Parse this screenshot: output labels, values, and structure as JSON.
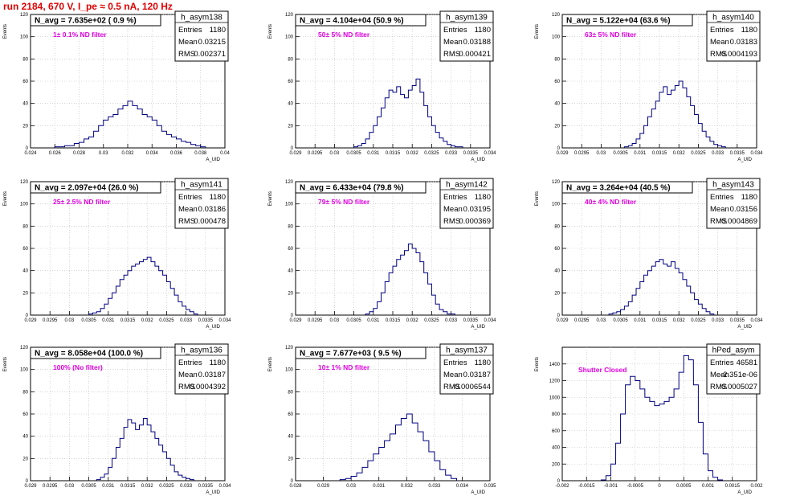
{
  "page_title": "run 2184,   670 V, I_pe ≈ 0.5 nA, 120 Hz",
  "ylabel": "Events",
  "xlabel": "A_UID",
  "stat_labels": {
    "entries": "Entries",
    "mean": "Mean",
    "rms": "RMS"
  },
  "colors": {
    "title": "#e00000",
    "annotation": "#e000e0",
    "hist": "#000080",
    "grid": "#bbbbbb"
  },
  "chart_data": [
    {
      "type": "bar",
      "id": "asym138",
      "name": "h_asym138",
      "navg": "N_avg = 7.635e+02 ( 0.9 %)",
      "note": "1± 0.1% ND filter",
      "stats": {
        "entries": "1180",
        "mean": "0.03215",
        "rms": "0.002371"
      },
      "xlim": [
        0.024,
        0.04
      ],
      "ylim": [
        0,
        120
      ],
      "xticks": [
        "0.024",
        "0.026",
        "0.028",
        "0.03",
        "0.032",
        "0.034",
        "0.036",
        "0.038",
        "0.04"
      ],
      "yticks": [
        "0",
        "20",
        "40",
        "60",
        "80",
        "100",
        "120"
      ],
      "grid": true,
      "x": [
        0.026,
        0.0264,
        0.0268,
        0.0272,
        0.0276,
        0.028,
        0.0284,
        0.0288,
        0.0292,
        0.0296,
        0.03,
        0.0304,
        0.0308,
        0.0312,
        0.0316,
        0.032,
        0.0324,
        0.0328,
        0.0332,
        0.0336,
        0.034,
        0.0344,
        0.0348,
        0.0352,
        0.0356,
        0.036,
        0.0364,
        0.0368,
        0.0372,
        0.0376,
        0.038
      ],
      "values": [
        1,
        1,
        2,
        2,
        4,
        5,
        8,
        10,
        15,
        20,
        25,
        28,
        30,
        35,
        38,
        42,
        38,
        35,
        30,
        28,
        25,
        20,
        15,
        12,
        10,
        8,
        6,
        5,
        3,
        2,
        1
      ]
    },
    {
      "type": "bar",
      "id": "asym139",
      "name": "h_asym139",
      "navg": "N_avg = 4.104e+04 (50.9 %)",
      "note": "50± 5% ND filter",
      "stats": {
        "entries": "1180",
        "mean": "0.03188",
        "rms": "0.000421"
      },
      "xlim": [
        0.029,
        0.034
      ],
      "ylim": [
        0,
        120
      ],
      "xticks": [
        "0.029",
        "0.0295",
        "0.03",
        "0.0305",
        "0.031",
        "0.0315",
        "0.032",
        "0.0325",
        "0.033",
        "0.0335",
        "0.034"
      ],
      "yticks": [
        "0",
        "20",
        "40",
        "60",
        "80",
        "100",
        "120"
      ],
      "grid": true,
      "x": [
        0.0305,
        0.0306,
        0.0307,
        0.0308,
        0.0309,
        0.031,
        0.0311,
        0.0312,
        0.0313,
        0.0314,
        0.0315,
        0.0316,
        0.0317,
        0.0318,
        0.0319,
        0.032,
        0.0321,
        0.0322,
        0.0323,
        0.0324,
        0.0325,
        0.0326,
        0.0327,
        0.0328,
        0.0329,
        0.033,
        0.0331,
        0.0332
      ],
      "values": [
        1,
        2,
        4,
        8,
        14,
        20,
        28,
        36,
        45,
        52,
        50,
        55,
        48,
        45,
        52,
        56,
        62,
        50,
        38,
        28,
        20,
        14,
        9,
        6,
        3,
        2,
        1,
        1
      ]
    },
    {
      "type": "bar",
      "id": "asym140",
      "name": "h_asym140",
      "navg": "N_avg = 5.122e+04 (63.6 %)",
      "note": "63± 5% ND filter",
      "stats": {
        "entries": "1180",
        "mean": "0.03183",
        "rms": "0.0004193"
      },
      "xlim": [
        0.029,
        0.034
      ],
      "ylim": [
        0,
        120
      ],
      "xticks": [
        "0.029",
        "0.0295",
        "0.03",
        "0.0305",
        "0.031",
        "0.0315",
        "0.032",
        "0.0325",
        "0.033",
        "0.0335",
        "0.034"
      ],
      "yticks": [
        "0",
        "20",
        "40",
        "60",
        "80",
        "100",
        "120"
      ],
      "grid": true,
      "x": [
        0.0306,
        0.0307,
        0.0308,
        0.0309,
        0.031,
        0.0311,
        0.0312,
        0.0313,
        0.0314,
        0.0315,
        0.0316,
        0.0317,
        0.0318,
        0.0319,
        0.032,
        0.0321,
        0.0322,
        0.0323,
        0.0324,
        0.0325,
        0.0326,
        0.0327,
        0.0328,
        0.0329,
        0.033,
        0.0331
      ],
      "values": [
        1,
        2,
        4,
        8,
        13,
        20,
        28,
        35,
        42,
        50,
        55,
        48,
        52,
        56,
        60,
        54,
        46,
        38,
        30,
        22,
        15,
        10,
        6,
        3,
        2,
        1
      ]
    },
    {
      "type": "bar",
      "id": "asym141",
      "name": "h_asym141",
      "navg": "N_avg = 2.097e+04 (26.0 %)",
      "note": "25± 2.5% ND filter",
      "stats": {
        "entries": "1180",
        "mean": "0.03186",
        "rms": "0.000478"
      },
      "xlim": [
        0.029,
        0.034
      ],
      "ylim": [
        0,
        120
      ],
      "xticks": [
        "0.029",
        "0.0295",
        "0.03",
        "0.0305",
        "0.031",
        "0.0315",
        "0.032",
        "0.0325",
        "0.033",
        "0.0335",
        "0.034"
      ],
      "yticks": [
        "0",
        "20",
        "40",
        "60",
        "80",
        "100",
        "120"
      ],
      "grid": true,
      "x": [
        0.0305,
        0.0306,
        0.0307,
        0.0308,
        0.0309,
        0.031,
        0.0311,
        0.0312,
        0.0313,
        0.0314,
        0.0315,
        0.0316,
        0.0317,
        0.0318,
        0.0319,
        0.032,
        0.0321,
        0.0322,
        0.0323,
        0.0324,
        0.0325,
        0.0326,
        0.0327,
        0.0328,
        0.0329,
        0.033,
        0.0331,
        0.0332
      ],
      "values": [
        1,
        2,
        3,
        6,
        10,
        15,
        20,
        26,
        32,
        36,
        40,
        44,
        46,
        48,
        50,
        52,
        48,
        44,
        40,
        36,
        30,
        24,
        18,
        12,
        8,
        5,
        3,
        1
      ]
    },
    {
      "type": "bar",
      "id": "asym142",
      "name": "h_asym142",
      "navg": "N_avg = 6.433e+04 (79.8 %)",
      "note": "79± 5% ND filter",
      "stats": {
        "entries": "1180",
        "mean": "0.03195",
        "rms": "0.000369"
      },
      "xlim": [
        0.029,
        0.034
      ],
      "ylim": [
        0,
        120
      ],
      "xticks": [
        "0.029",
        "0.0295",
        "0.03",
        "0.0305",
        "0.031",
        "0.0315",
        "0.032",
        "0.0325",
        "0.033",
        "0.0335",
        "0.034"
      ],
      "yticks": [
        "0",
        "20",
        "40",
        "60",
        "80",
        "100",
        "120"
      ],
      "grid": true,
      "x": [
        0.0308,
        0.0309,
        0.031,
        0.0311,
        0.0312,
        0.0313,
        0.0314,
        0.0315,
        0.0316,
        0.0317,
        0.0318,
        0.0319,
        0.032,
        0.0321,
        0.0322,
        0.0323,
        0.0324,
        0.0325,
        0.0326,
        0.0327,
        0.0328,
        0.0329,
        0.033
      ],
      "values": [
        1,
        3,
        6,
        12,
        20,
        30,
        38,
        44,
        50,
        54,
        58,
        64,
        60,
        56,
        48,
        38,
        28,
        18,
        10,
        5,
        3,
        1,
        1
      ]
    },
    {
      "type": "bar",
      "id": "asym143",
      "name": "h_asym143",
      "navg": "N_avg = 3.264e+04 (40.5 %)",
      "note": "40± 4% ND filter",
      "stats": {
        "entries": "1180",
        "mean": "0.03156",
        "rms": "0.0004869"
      },
      "xlim": [
        0.029,
        0.034
      ],
      "ylim": [
        0,
        120
      ],
      "xticks": [
        "0.029",
        "0.0295",
        "0.03",
        "0.0305",
        "0.031",
        "0.0315",
        "0.032",
        "0.0325",
        "0.033",
        "0.0335",
        "0.034"
      ],
      "yticks": [
        "0",
        "20",
        "40",
        "60",
        "80",
        "100",
        "120"
      ],
      "grid": true,
      "x": [
        0.0302,
        0.0303,
        0.0304,
        0.0305,
        0.0306,
        0.0307,
        0.0308,
        0.0309,
        0.031,
        0.0311,
        0.0312,
        0.0313,
        0.0314,
        0.0315,
        0.0316,
        0.0317,
        0.0318,
        0.0319,
        0.032,
        0.0321,
        0.0322,
        0.0323,
        0.0324,
        0.0325,
        0.0326,
        0.0327,
        0.0328
      ],
      "values": [
        1,
        2,
        3,
        5,
        8,
        12,
        18,
        24,
        30,
        36,
        40,
        44,
        48,
        50,
        46,
        44,
        48,
        42,
        38,
        32,
        26,
        20,
        14,
        10,
        6,
        3,
        1
      ]
    },
    {
      "type": "bar",
      "id": "asym136",
      "name": "h_asym136",
      "navg": "N_avg = 8.058e+04 (100.0 %)",
      "note": "100% (No filter)",
      "stats": {
        "entries": "1180",
        "mean": "0.03187",
        "rms": "0.0004392"
      },
      "xlim": [
        0.029,
        0.034
      ],
      "ylim": [
        0,
        120
      ],
      "xticks": [
        "0.029",
        "0.0295",
        "0.03",
        "0.0305",
        "0.031",
        "0.0315",
        "0.032",
        "0.0325",
        "0.033",
        "0.0335",
        "0.034"
      ],
      "yticks": [
        "0",
        "20",
        "40",
        "60",
        "80",
        "100",
        "120"
      ],
      "grid": true,
      "x": [
        0.0307,
        0.0308,
        0.0309,
        0.031,
        0.0311,
        0.0312,
        0.0313,
        0.0314,
        0.0315,
        0.0316,
        0.0317,
        0.0318,
        0.0319,
        0.032,
        0.0321,
        0.0322,
        0.0323,
        0.0324,
        0.0325,
        0.0326,
        0.0327,
        0.0328,
        0.0329,
        0.033,
        0.0331
      ],
      "values": [
        1,
        3,
        6,
        12,
        20,
        30,
        38,
        48,
        55,
        52,
        46,
        50,
        56,
        50,
        44,
        38,
        32,
        26,
        20,
        14,
        8,
        5,
        3,
        2,
        1
      ]
    },
    {
      "type": "bar",
      "id": "asym137",
      "name": "h_asym137",
      "navg": "N_avg = 7.677e+03 ( 9.5 %)",
      "note": "10± 1% ND filter",
      "stats": {
        "entries": "1180",
        "mean": "0.03187",
        "rms": "0.0006544"
      },
      "xlim": [
        0.028,
        0.035
      ],
      "ylim": [
        0,
        120
      ],
      "xticks": [
        "0.028",
        "0.029",
        "0.03",
        "0.031",
        "0.032",
        "0.033",
        "0.034",
        "0.035"
      ],
      "yticks": [
        "0",
        "20",
        "40",
        "60",
        "80",
        "100",
        "120"
      ],
      "grid": true,
      "x": [
        0.0296,
        0.0298,
        0.03,
        0.0302,
        0.0304,
        0.0306,
        0.0308,
        0.031,
        0.0312,
        0.0314,
        0.0316,
        0.0318,
        0.032,
        0.0322,
        0.0324,
        0.0326,
        0.0328,
        0.033,
        0.0332,
        0.0334,
        0.0336
      ],
      "values": [
        1,
        2,
        4,
        7,
        12,
        18,
        24,
        30,
        36,
        42,
        50,
        56,
        60,
        52,
        44,
        36,
        26,
        18,
        10,
        5,
        2
      ]
    },
    {
      "type": "bar",
      "id": "ped",
      "name": "hPed_asym",
      "navg": "",
      "note": "Shutter Closed",
      "stats": {
        "entries": "46581",
        "mean": "-2.351e-06",
        "rms": "0.0005027"
      },
      "xlim": [
        -0.002,
        0.002
      ],
      "ylim": [
        0,
        1600
      ],
      "xticks": [
        "-0.002",
        "-0.0015",
        "-0.001",
        "-0.0005",
        "0",
        "0.0005",
        "0.001",
        "0.0015",
        "0.002"
      ],
      "yticks": [
        "0",
        "200",
        "400",
        "600",
        "800",
        "1000",
        "1200",
        "1400"
      ],
      "grid": true,
      "x": [
        -0.0012,
        -0.0011,
        -0.001,
        -0.0009,
        -0.0008,
        -0.0007,
        -0.0006,
        -0.0005,
        -0.0004,
        -0.0003,
        -0.0002,
        -0.0001,
        0.0,
        0.0001,
        0.0002,
        0.0003,
        0.0004,
        0.0005,
        0.0006,
        0.0007,
        0.0008,
        0.0009,
        0.001,
        0.0011,
        0.0012
      ],
      "values": [
        10,
        60,
        200,
        450,
        800,
        1150,
        1250,
        1200,
        1100,
        1000,
        950,
        900,
        920,
        950,
        1000,
        1100,
        1300,
        1500,
        1450,
        1150,
        700,
        320,
        120,
        40,
        10
      ]
    }
  ]
}
